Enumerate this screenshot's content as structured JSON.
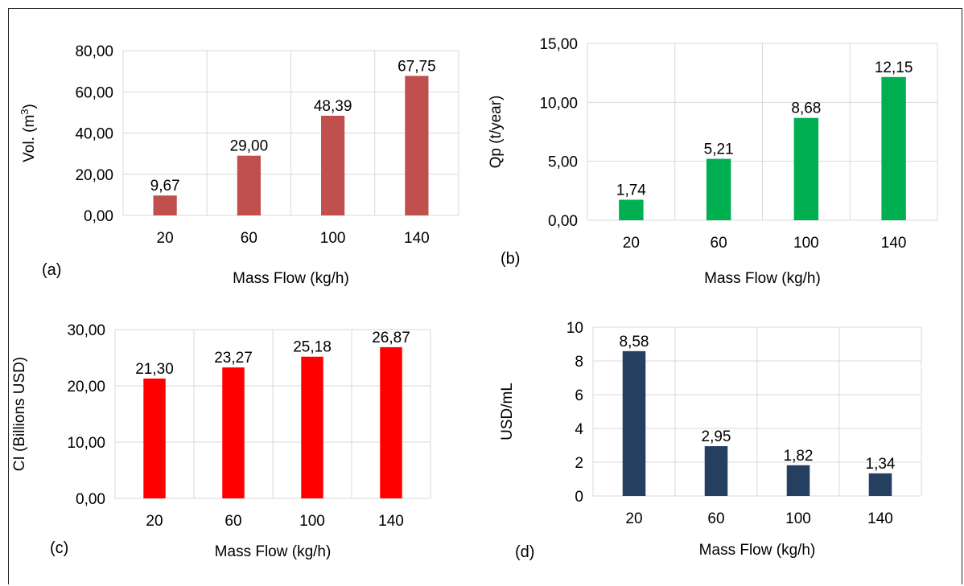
{
  "chart_data": [
    {
      "type": "bar",
      "panel_label": "(a)",
      "categories": [
        "20",
        "60",
        "100",
        "140"
      ],
      "values": [
        9.67,
        29.0,
        48.39,
        67.75
      ],
      "value_labels": [
        "9,67",
        "29,00",
        "48,39",
        "67,75"
      ],
      "title": "",
      "xlabel": "Mass Flow (kg/h)",
      "ylabel_main": "Vol. (m",
      "ylabel_sup": "3",
      "ylabel_end": ")",
      "ylim": [
        0,
        80
      ],
      "yticks": [
        0,
        20,
        40,
        60,
        80
      ],
      "ytick_labels": [
        "0,00",
        "20,00",
        "40,00",
        "60,00",
        "80,00"
      ],
      "color": "#C0504D",
      "grid": true
    },
    {
      "type": "bar",
      "panel_label": "(b)",
      "categories": [
        "20",
        "60",
        "100",
        "140"
      ],
      "values": [
        1.74,
        5.21,
        8.68,
        12.15
      ],
      "value_labels": [
        "1,74",
        "5,21",
        "8,68",
        "12,15"
      ],
      "title": "",
      "xlabel": "Mass Flow (kg/h)",
      "ylabel_main": "Qp (t/year)",
      "ylim": [
        0,
        15
      ],
      "yticks": [
        0,
        5,
        10,
        15
      ],
      "ytick_labels": [
        "0,00",
        "5,00",
        "10,00",
        "15,00"
      ],
      "color": "#00B050",
      "grid": true
    },
    {
      "type": "bar",
      "panel_label": "(c)",
      "categories": [
        "20",
        "60",
        "100",
        "140"
      ],
      "values": [
        21.3,
        23.27,
        25.18,
        26.87
      ],
      "value_labels": [
        "21,30",
        "23,27",
        "25,18",
        "26,87"
      ],
      "title": "",
      "xlabel": "Mass Flow (kg/h)",
      "ylabel_main": "CI  (Billions USD)",
      "ylim": [
        0,
        30
      ],
      "yticks": [
        0,
        10,
        20,
        30
      ],
      "ytick_labels": [
        "0,00",
        "10,00",
        "20,00",
        "30,00"
      ],
      "color": "#FF0000",
      "grid": true
    },
    {
      "type": "bar",
      "panel_label": "(d)",
      "categories": [
        "20",
        "60",
        "100",
        "140"
      ],
      "values": [
        8.58,
        2.95,
        1.82,
        1.34
      ],
      "value_labels": [
        "8,58",
        "2,95",
        "1,82",
        "1,34"
      ],
      "title": "",
      "xlabel": "Mass Flow (kg/h)",
      "ylabel_main": "USD/mL",
      "ylim": [
        0,
        10
      ],
      "yticks": [
        0,
        2,
        4,
        6,
        8,
        10
      ],
      "ytick_labels": [
        "0",
        "2",
        "4",
        "6",
        "8",
        "10"
      ],
      "color": "#243F60",
      "grid": true
    }
  ]
}
